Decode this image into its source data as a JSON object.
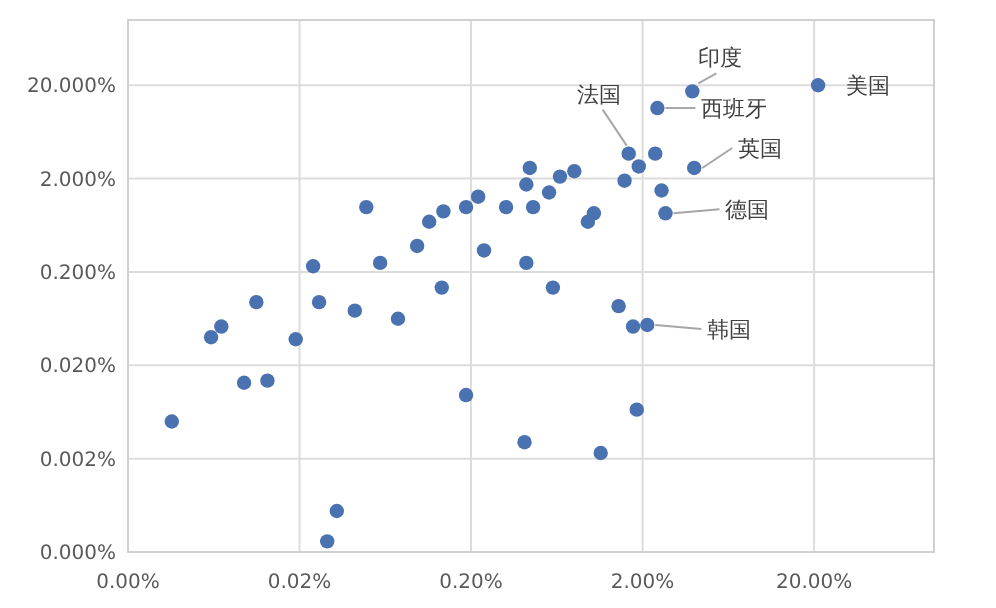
{
  "chart_data": {
    "type": "scatter",
    "log": "xy",
    "grid": true,
    "marker": "circle",
    "xlim": [
      0.002,
      100
    ],
    "ylim": [
      0.0002,
      100
    ],
    "xticks": [
      {
        "value": 0.002,
        "label": "0.00%"
      },
      {
        "value": 0.02,
        "label": "0.02%"
      },
      {
        "value": 0.2,
        "label": "0.20%"
      },
      {
        "value": 2,
        "label": "2.00%"
      },
      {
        "value": 20,
        "label": "20.00%"
      }
    ],
    "yticks": [
      {
        "value": 0.0002,
        "label": "0.000%"
      },
      {
        "value": 0.002,
        "label": "0.002%"
      },
      {
        "value": 0.02,
        "label": "0.020%"
      },
      {
        "value": 0.2,
        "label": "0.200%"
      },
      {
        "value": 2,
        "label": "2.000%"
      },
      {
        "value": 20,
        "label": "20.000%"
      }
    ],
    "series": [
      {
        "color": "#4a72b0",
        "x": [
          0.049,
          0.114,
          0.138,
          0.187,
          0.22,
          3.9,
          21.1,
          2.44,
          1.66,
          1.9,
          2.37,
          4.0,
          1.57,
          2.58,
          2.72,
          0.44,
          0.42,
          0.66,
          0.8,
          0.57,
          0.32,
          0.46,
          1.04,
          0.96,
          0.0112,
          0.026,
          0.042,
          0.007,
          0.0061,
          0.019,
          0.0095,
          0.013,
          0.187,
          0.0036,
          0.033,
          0.029,
          1.45,
          1.76,
          2.13,
          1.85,
          0.41,
          1.14,
          0.024,
          0.059,
          0.097,
          0.238,
          0.42,
          0.6,
          0.075,
          0.135
        ],
        "values": [
          0.99,
          0.69,
          0.89,
          0.99,
          1.28,
          17.2,
          20,
          11.4,
          3.7,
          2.7,
          3.7,
          2.6,
          1.9,
          1.49,
          0.85,
          2.6,
          1.73,
          2.1,
          2.4,
          1.42,
          0.99,
          0.99,
          0.85,
          0.69,
          0.095,
          0.095,
          0.077,
          0.052,
          0.04,
          0.038,
          0.013,
          0.0137,
          0.0096,
          0.005,
          0.00055,
          0.00026,
          0.086,
          0.052,
          0.054,
          0.0067,
          0.003,
          0.0023,
          0.23,
          0.25,
          0.38,
          0.34,
          0.25,
          0.136,
          0.063,
          0.136
        ]
      }
    ],
    "annotations": [
      {
        "text": "印度",
        "x": 3.9,
        "y": 17.2
      },
      {
        "text": "美国",
        "x": 21.1,
        "y": 20
      },
      {
        "text": "西班牙",
        "x": 2.44,
        "y": 11.4
      },
      {
        "text": "法国",
        "x": 1.66,
        "y": 3.7
      },
      {
        "text": "英国",
        "x": 4.0,
        "y": 2.6
      },
      {
        "text": "德国",
        "x": 2.72,
        "y": 0.85
      },
      {
        "text": "韩国",
        "x": 2.13,
        "y": 0.054
      }
    ]
  }
}
